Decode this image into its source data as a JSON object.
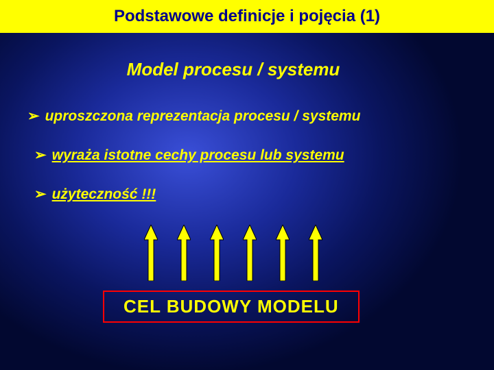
{
  "slide": {
    "background": {
      "gradient_center": "#3a4fd8",
      "gradient_mid": "#1a2a9a",
      "gradient_outer": "#020830"
    },
    "title_bar": {
      "text": "Podstawowe definicje i pojęcia (1)",
      "background_color": "#ffff00",
      "text_color": "#00008b",
      "fontsize": 24
    },
    "heading": {
      "text": "Model procesu / systemu",
      "color": "#ffff00",
      "fontsize": 26
    },
    "bullets": [
      {
        "marker": "➢",
        "text": "uproszczona reprezentacja procesu / systemu",
        "text_decoration": "none",
        "indent": 0
      },
      {
        "marker": "➢",
        "text": "wyraża istotne cechy procesu lub systemu",
        "text_decoration": "underline",
        "indent": 10
      },
      {
        "marker": "➢",
        "text": "użyteczność !!!",
        "text_decoration": "underline",
        "indent": 10
      }
    ],
    "bullet_style": {
      "color": "#ffff00",
      "fontsize": 21
    },
    "arrows": {
      "count": 6,
      "shaft_color": "#ffff00",
      "outline_color": "#000000",
      "width": 20,
      "height": 82,
      "gap": 28
    },
    "model_box": {
      "text": "CEL BUDOWY MODELU",
      "border_color": "#ff0000",
      "border_width": 2,
      "text_color": "#ffff00",
      "fontsize": 26,
      "background": "transparent"
    }
  }
}
